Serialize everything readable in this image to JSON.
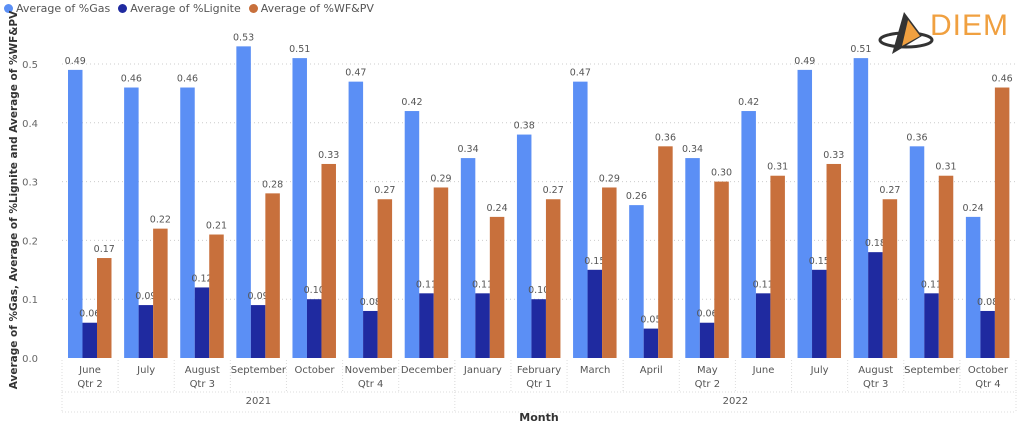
{
  "colors": {
    "gas": "#5b8ff5",
    "lignite": "#1f2aa0",
    "wf": "#c8703c"
  },
  "logo": {
    "text": "DIEM"
  },
  "chart_data": {
    "type": "bar",
    "title": "",
    "xlabel": "Month",
    "ylabel": "Average of %Gas, Average of %Lignite and Average of %WF&PV",
    "ylim": [
      0,
      0.55
    ],
    "yticks": [
      "0.0",
      "0.1",
      "0.2",
      "0.3",
      "0.4",
      "0.5"
    ],
    "grid": true,
    "legend_position": "top-left",
    "categories": [
      "June",
      "July",
      "August",
      "September",
      "October",
      "November",
      "December",
      "January",
      "February",
      "March",
      "April",
      "May",
      "June",
      "July",
      "August",
      "September",
      "October"
    ],
    "quarters": [
      {
        "label": "Qtr 2",
        "count": 1
      },
      {
        "label": "Qtr 3",
        "count": 3
      },
      {
        "label": "Qtr 4",
        "count": 3
      },
      {
        "label": "Qtr 1",
        "count": 3
      },
      {
        "label": "Qtr 2",
        "count": 3
      },
      {
        "label": "Qtr 3",
        "count": 3
      },
      {
        "label": "Qtr 4",
        "count": 1
      }
    ],
    "years": [
      {
        "label": "2021",
        "count": 7
      },
      {
        "label": "2022",
        "count": 10
      }
    ],
    "series": [
      {
        "name": "Average of %Gas",
        "key": "gas",
        "values": [
          0.49,
          0.46,
          0.46,
          0.53,
          0.51,
          0.47,
          0.42,
          0.34,
          0.38,
          0.47,
          0.26,
          0.34,
          0.42,
          0.49,
          0.51,
          0.36,
          0.24
        ]
      },
      {
        "name": "Average of %Lignite",
        "key": "lignite",
        "values": [
          0.06,
          0.09,
          0.12,
          0.09,
          0.1,
          0.08,
          0.11,
          0.11,
          0.1,
          0.15,
          0.05,
          0.06,
          0.11,
          0.15,
          0.18,
          0.11,
          0.08
        ]
      },
      {
        "name": "Average of %WF&PV",
        "key": "wf",
        "values": [
          0.17,
          0.22,
          0.21,
          0.28,
          0.33,
          0.27,
          0.29,
          0.24,
          0.27,
          0.29,
          0.36,
          0.3,
          0.31,
          0.33,
          0.27,
          0.31,
          0.46
        ]
      }
    ]
  }
}
